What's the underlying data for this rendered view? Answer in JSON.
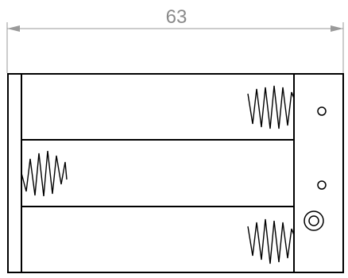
{
  "dimension": {
    "width_label": "63"
  },
  "holder": {
    "cells": 3,
    "springs": [
      {
        "cell": "top",
        "side": "right"
      },
      {
        "cell": "middle",
        "side": "left"
      },
      {
        "cell": "bottom",
        "side": "right"
      }
    ],
    "mounting_holes": 2,
    "terminal": "ring-terminal"
  },
  "colors": {
    "outline": "#000000",
    "dimension": "#9a9a9a",
    "dimension_text": "#8a8a8a",
    "background": "#ffffff"
  }
}
